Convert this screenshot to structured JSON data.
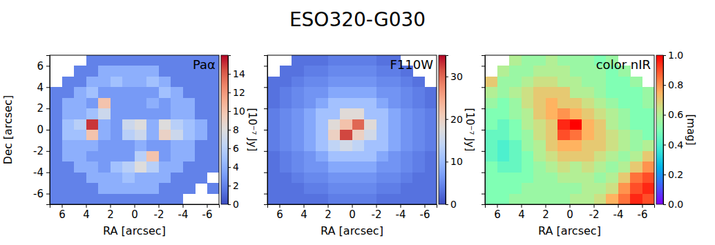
{
  "title": "ESO320-G030",
  "chart_data": [
    {
      "type": "heatmap",
      "color": "coolwarm",
      "annotation": "Paα",
      "x_label": "RA [arcsec]",
      "y_label": "Dec [arcsec]",
      "xlim": [
        7,
        -7
      ],
      "ylim": [
        -7,
        7
      ],
      "xticks": [
        6,
        4,
        2,
        0,
        -2,
        -4,
        -6
      ],
      "yticks": [
        -6,
        -4,
        -2,
        0,
        2,
        4,
        6
      ],
      "x": [
        6.5,
        5.5,
        4.5,
        3.5,
        2.5,
        1.5,
        0.5,
        -0.5,
        -1.5,
        -2.5,
        -3.5,
        -4.5,
        -5.5,
        -6.5
      ],
      "y": [
        6.5,
        5.5,
        4.5,
        3.5,
        2.5,
        1.5,
        0.5,
        -0.5,
        -1.5,
        -2.5,
        -3.5,
        -4.5,
        -5.5,
        -6.5
      ],
      "z": [
        [
          null,
          null,
          null,
          2,
          2,
          2,
          2,
          2,
          2,
          2,
          2,
          2,
          2,
          2
        ],
        [
          null,
          null,
          2,
          2,
          4,
          4,
          4,
          4,
          4,
          2,
          2,
          2,
          2,
          2
        ],
        [
          null,
          2,
          2,
          4,
          4,
          5,
          4,
          4,
          5,
          4,
          2,
          2,
          2,
          2
        ],
        [
          2,
          2,
          4,
          5,
          3,
          3,
          3,
          3,
          3,
          5,
          4,
          2,
          2,
          2
        ],
        [
          2,
          4,
          4,
          3,
          10,
          3,
          3,
          3,
          4,
          3,
          4,
          4,
          2,
          2
        ],
        [
          2,
          4,
          4,
          5,
          7,
          3,
          3,
          3,
          3,
          3,
          4,
          4,
          2,
          2
        ],
        [
          2,
          5,
          6,
          15,
          4,
          3,
          7,
          8,
          4,
          8,
          6,
          5,
          4,
          2
        ],
        [
          2,
          5,
          5,
          10,
          4,
          3,
          6,
          7,
          4,
          9,
          7,
          5,
          4,
          2
        ],
        [
          2,
          4,
          4,
          4,
          3,
          3,
          3,
          4,
          3,
          3,
          4,
          4,
          2,
          2
        ],
        [
          2,
          4,
          4,
          3,
          3,
          3,
          3,
          6,
          10,
          3,
          4,
          4,
          2,
          2
        ],
        [
          2,
          2,
          4,
          4,
          3,
          5,
          6,
          8,
          6,
          4,
          4,
          2,
          2,
          2
        ],
        [
          2,
          2,
          2,
          4,
          4,
          4,
          5,
          4,
          4,
          4,
          2,
          2,
          2,
          null
        ],
        [
          2,
          2,
          2,
          2,
          4,
          4,
          4,
          4,
          4,
          2,
          2,
          2,
          null,
          2
        ],
        [
          2,
          2,
          2,
          2,
          2,
          2,
          2,
          2,
          2,
          2,
          2,
          null,
          null,
          null
        ]
      ],
      "colorbar": {
        "range": [
          0,
          16
        ],
        "ticks": [
          0,
          2,
          4,
          6,
          8,
          10,
          12,
          14
        ],
        "label": "[10⁻⁷ Jy]"
      }
    },
    {
      "type": "heatmap",
      "color": "coolwarm",
      "annotation": "F110W",
      "x_label": "RA [arcsec]",
      "tick_labels": "x",
      "xlim": [
        7,
        -7
      ],
      "ylim": [
        -7,
        7
      ],
      "xticks": [
        6,
        4,
        2,
        0,
        -2,
        -4,
        -6
      ],
      "yticks": [
        -6,
        -4,
        -2,
        0,
        2,
        4,
        6
      ],
      "x": [
        6.5,
        5.5,
        4.5,
        3.5,
        2.5,
        1.5,
        0.5,
        -0.5,
        -1.5,
        -2.5,
        -3.5,
        -4.5,
        -5.5,
        -6.5
      ],
      "y": [
        6.5,
        5.5,
        4.5,
        3.5,
        2.5,
        1.5,
        0.5,
        -0.5,
        -1.5,
        -2.5,
        -3.5,
        -4.5,
        -5.5,
        -6.5
      ],
      "z": [
        [
          null,
          null,
          3,
          3,
          3,
          4,
          4,
          4,
          4,
          3,
          3,
          null,
          null,
          null
        ],
        [
          null,
          3,
          3,
          4,
          4,
          5,
          5,
          5,
          5,
          4,
          4,
          3,
          null,
          null
        ],
        [
          3,
          3,
          4,
          5,
          5,
          6,
          6,
          6,
          6,
          5,
          5,
          4,
          3,
          null
        ],
        [
          3,
          4,
          5,
          6,
          6,
          8,
          8,
          8,
          8,
          6,
          6,
          5,
          4,
          3
        ],
        [
          3,
          4,
          5,
          6,
          8,
          11,
          11,
          11,
          11,
          8,
          6,
          5,
          4,
          3
        ],
        [
          4,
          5,
          6,
          8,
          11,
          11,
          18,
          18,
          11,
          11,
          8,
          6,
          5,
          4
        ],
        [
          4,
          5,
          6,
          8,
          11,
          18,
          22,
          30,
          18,
          11,
          8,
          6,
          5,
          4
        ],
        [
          4,
          5,
          6,
          8,
          11,
          20,
          32,
          20,
          16,
          11,
          8,
          6,
          5,
          4
        ],
        [
          4,
          5,
          6,
          8,
          11,
          14,
          16,
          14,
          11,
          11,
          8,
          6,
          5,
          4
        ],
        [
          3,
          4,
          5,
          6,
          8,
          11,
          11,
          11,
          11,
          8,
          6,
          5,
          4,
          3
        ],
        [
          3,
          4,
          5,
          6,
          6,
          8,
          8,
          8,
          8,
          6,
          6,
          5,
          4,
          3
        ],
        [
          3,
          3,
          4,
          5,
          5,
          6,
          6,
          6,
          6,
          5,
          5,
          4,
          3,
          3
        ],
        [
          3,
          3,
          3,
          4,
          4,
          5,
          5,
          5,
          5,
          4,
          4,
          3,
          3,
          3
        ],
        [
          3,
          3,
          3,
          3,
          3,
          4,
          4,
          4,
          4,
          3,
          3,
          3,
          3,
          3
        ]
      ],
      "colorbar": {
        "range": [
          0,
          35
        ],
        "ticks": [
          0,
          10,
          20,
          30
        ],
        "label": "[10⁻⁷ Jy]"
      }
    },
    {
      "type": "heatmap",
      "color": "rainbow",
      "annotation": "color nIR",
      "x_label": "RA [arcsec]",
      "tick_labels": "x",
      "xlim": [
        7,
        -7
      ],
      "ylim": [
        -7,
        7
      ],
      "xticks": [
        6,
        4,
        2,
        0,
        -2,
        -4,
        -6
      ],
      "yticks": [
        -6,
        -4,
        -2,
        0,
        2,
        4,
        6
      ],
      "x": [
        6.5,
        5.5,
        4.5,
        3.5,
        2.5,
        1.5,
        0.5,
        -0.5,
        -1.5,
        -2.5,
        -3.5,
        -4.5,
        -5.5,
        -6.5
      ],
      "y": [
        6.5,
        5.5,
        4.5,
        3.5,
        2.5,
        1.5,
        0.5,
        -0.5,
        -1.5,
        -2.5,
        -3.5,
        -4.5,
        -5.5,
        -6.5
      ],
      "z": [
        [
          null,
          null,
          0.6,
          0.55,
          0.55,
          0.6,
          0.55,
          0.55,
          0.55,
          0.5,
          0.55,
          null,
          null,
          null
        ],
        [
          null,
          0.6,
          0.55,
          0.55,
          0.6,
          0.6,
          0.6,
          0.55,
          0.55,
          0.55,
          0.5,
          0.55,
          null,
          null
        ],
        [
          0.7,
          0.55,
          0.55,
          0.6,
          0.65,
          0.65,
          0.6,
          0.6,
          0.55,
          0.55,
          0.5,
          0.5,
          0.55,
          null
        ],
        [
          0.6,
          0.55,
          0.6,
          0.65,
          0.7,
          0.7,
          0.7,
          0.6,
          0.6,
          0.55,
          0.5,
          0.5,
          0.5,
          0.55
        ],
        [
          0.55,
          0.5,
          0.55,
          0.65,
          0.7,
          0.75,
          0.7,
          0.7,
          0.65,
          0.6,
          0.55,
          0.5,
          0.5,
          0.55
        ],
        [
          0.5,
          0.5,
          0.55,
          0.6,
          0.7,
          0.75,
          0.8,
          0.75,
          0.7,
          0.65,
          0.6,
          0.55,
          0.5,
          0.5
        ],
        [
          0.5,
          0.45,
          0.5,
          0.6,
          0.65,
          0.7,
          0.95,
          1.0,
          0.75,
          0.7,
          0.6,
          0.55,
          0.5,
          0.5
        ],
        [
          0.45,
          0.45,
          0.5,
          0.55,
          0.65,
          0.7,
          0.9,
          0.85,
          0.75,
          0.7,
          0.65,
          0.6,
          0.55,
          0.5
        ],
        [
          0.45,
          0.4,
          0.45,
          0.55,
          0.6,
          0.7,
          0.75,
          0.75,
          0.7,
          0.7,
          0.65,
          0.6,
          0.55,
          0.6
        ],
        [
          0.45,
          0.4,
          0.45,
          0.5,
          0.6,
          0.65,
          0.7,
          0.7,
          0.7,
          0.65,
          0.6,
          0.55,
          0.6,
          0.7
        ],
        [
          0.5,
          0.45,
          0.45,
          0.5,
          0.55,
          0.6,
          0.65,
          0.6,
          0.65,
          0.6,
          0.55,
          0.6,
          0.7,
          0.8
        ],
        [
          0.5,
          0.5,
          0.5,
          0.5,
          0.55,
          0.55,
          0.6,
          0.6,
          0.6,
          0.55,
          0.6,
          0.7,
          0.85,
          0.9
        ],
        [
          0.5,
          0.5,
          0.5,
          0.55,
          0.55,
          0.55,
          0.55,
          0.55,
          0.6,
          0.6,
          0.65,
          0.8,
          0.9,
          0.95
        ],
        [
          0.5,
          0.5,
          0.55,
          0.55,
          0.55,
          0.55,
          0.55,
          0.6,
          0.6,
          0.65,
          0.75,
          0.85,
          0.95,
          0.9
        ]
      ],
      "colorbar": {
        "range": [
          0,
          1
        ],
        "ticks": [
          {
            "value": 0,
            "label": "0.0"
          },
          0.2,
          0.4,
          0.6,
          0.8,
          {
            "value": 1,
            "label": "1.0"
          }
        ],
        "label": "[mag]"
      }
    }
  ]
}
